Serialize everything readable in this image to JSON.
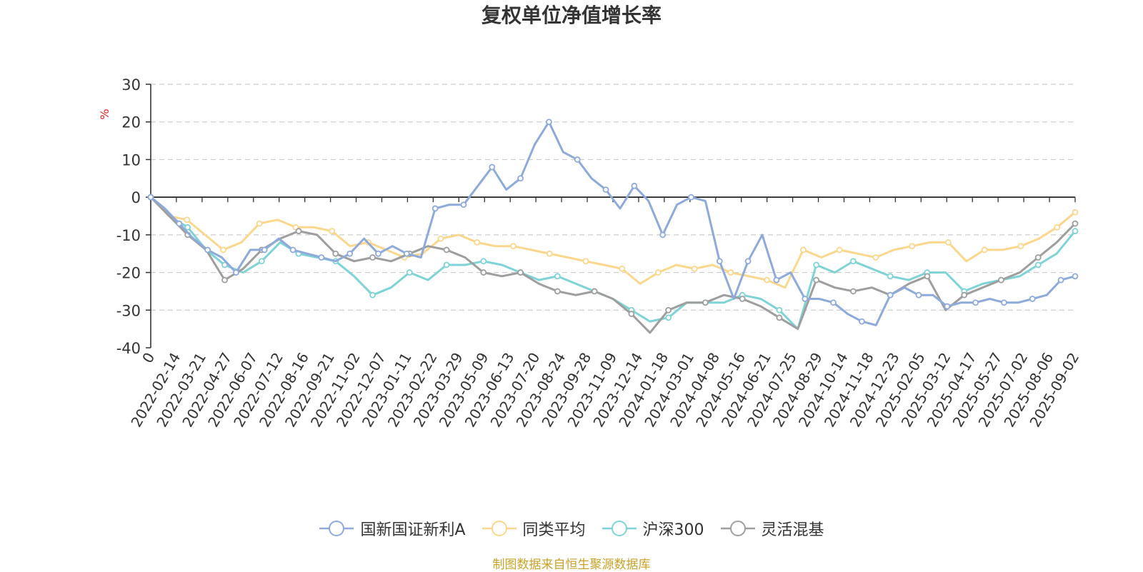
{
  "chart_data": {
    "type": "line",
    "title": "复权单位净值增长率",
    "ylabel": "%",
    "ylim": [
      -40,
      30
    ],
    "yticks": [
      30,
      20,
      10,
      0,
      -10,
      -20,
      -30,
      -40
    ],
    "x_tick_labels": [
      "0",
      "2022-02-14",
      "2022-03-21",
      "2022-04-27",
      "2022-06-07",
      "2022-07-12",
      "2022-08-16",
      "2022-09-21",
      "2022-11-02",
      "2022-12-07",
      "2023-01-11",
      "2023-02-22",
      "2023-03-29",
      "2023-05-09",
      "2023-06-13",
      "2023-07-20",
      "2023-08-24",
      "2023-09-28",
      "2023-11-09",
      "2023-12-14",
      "2024-01-18",
      "2024-03-01",
      "2024-04-08",
      "2024-05-16",
      "2024-06-21",
      "2024-07-25",
      "2024-08-29",
      "2024-10-14",
      "2024-11-18",
      "2024-12-23",
      "2025-02-05",
      "2025-03-12",
      "2025-04-17",
      "2025-05-27",
      "2025-07-02",
      "2025-08-06",
      "2025-09-02"
    ],
    "grid": true,
    "legend_position": "bottom",
    "series": [
      {
        "name": "国新国证新利A",
        "color": "#8eaadb",
        "values": [
          0,
          -3,
          -7,
          -11,
          -14,
          -16,
          -20,
          -14,
          -14,
          -11,
          -14,
          -15,
          -16,
          -17,
          -15,
          -11,
          -15,
          -13,
          -15,
          -16,
          -3,
          -2,
          -2,
          3,
          8,
          2,
          5,
          14,
          20,
          12,
          10,
          5,
          2,
          -3,
          3,
          -1,
          -10,
          -2,
          0,
          -1,
          -17,
          -27,
          -17,
          -10,
          -22,
          -20,
          -27,
          -27,
          -28,
          -31,
          -33,
          -34,
          -26,
          -24,
          -26,
          -26,
          -29,
          -28,
          -28,
          -27,
          -28,
          -28,
          -27,
          -26,
          -22,
          -21
        ]
      },
      {
        "name": "同类平均",
        "color": "#fbd78e",
        "values": [
          0,
          -5,
          -6,
          -10,
          -14,
          -12,
          -7,
          -6,
          -8,
          -8,
          -9,
          -13,
          -12,
          -14,
          -16,
          -15,
          -11,
          -10,
          -12,
          -13,
          -13,
          -14,
          -15,
          -16,
          -17,
          -18,
          -19,
          -23,
          -20,
          -18,
          -19,
          -18,
          -20,
          -21,
          -22,
          -24,
          -14,
          -16,
          -14,
          -15,
          -16,
          -14,
          -13,
          -12,
          -12,
          -17,
          -14,
          -14,
          -13,
          -11,
          -8,
          -4
        ]
      },
      {
        "name": "沪深300",
        "color": "#7fd3d6",
        "values": [
          0,
          -5,
          -8,
          -14,
          -18,
          -20,
          -17,
          -12,
          -15,
          -16,
          -17,
          -21,
          -26,
          -24,
          -20,
          -22,
          -18,
          -18,
          -17,
          -18,
          -20,
          -22,
          -21,
          -23,
          -25,
          -27,
          -30,
          -33,
          -32,
          -28,
          -28,
          -28,
          -26,
          -27,
          -30,
          -35,
          -18,
          -20,
          -17,
          -19,
          -21,
          -22,
          -20,
          -20,
          -25,
          -23,
          -22,
          -21,
          -18,
          -15,
          -9
        ]
      },
      {
        "name": "灵活混基",
        "color": "#9e9e9e",
        "values": [
          0,
          -5,
          -10,
          -14,
          -22,
          -19,
          -14,
          -11,
          -9,
          -10,
          -15,
          -17,
          -16,
          -17,
          -15,
          -13,
          -14,
          -16,
          -20,
          -21,
          -20,
          -23,
          -25,
          -26,
          -25,
          -27,
          -31,
          -36,
          -30,
          -28,
          -28,
          -26,
          -27,
          -29,
          -32,
          -35,
          -22,
          -24,
          -25,
          -24,
          -26,
          -23,
          -21,
          -30,
          -26,
          -24,
          -22,
          -20,
          -16,
          -12,
          -7
        ]
      }
    ]
  },
  "footer": {
    "source": "制图数据来自恒生聚源数据库"
  }
}
